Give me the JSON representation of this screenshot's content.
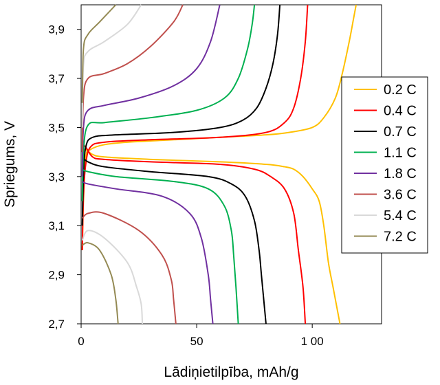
{
  "chart_data": {
    "type": "line",
    "xlabel": "Lādiņietilpība, mAh/g",
    "ylabel": "Spriegums, V",
    "xlim": [
      0,
      130
    ],
    "ylim": [
      2.7,
      4.0
    ],
    "x_ticks": [
      0,
      50,
      100
    ],
    "x_tick_labels": [
      "0",
      "50",
      "1 00"
    ],
    "y_ticks": [
      2.7,
      2.9,
      3.1,
      3.3,
      3.5,
      3.7,
      3.9
    ],
    "y_tick_labels": [
      "2,7",
      "2,9",
      "3,1",
      "3,3",
      "3,5",
      "3,7",
      "3,9"
    ],
    "grid": false,
    "legend_position": "right",
    "series": [
      {
        "name": "0.2 C",
        "color": "#FFC000",
        "charge": [
          [
            0.5,
            3.0
          ],
          [
            1,
            3.2
          ],
          [
            2,
            3.38
          ],
          [
            4,
            3.41
          ],
          [
            10,
            3.43
          ],
          [
            20,
            3.44
          ],
          [
            40,
            3.45
          ],
          [
            60,
            3.46
          ],
          [
            80,
            3.47
          ],
          [
            90,
            3.48
          ],
          [
            100,
            3.5
          ],
          [
            105,
            3.54
          ],
          [
            110,
            3.62
          ],
          [
            113,
            3.72
          ],
          [
            116,
            3.85
          ],
          [
            118,
            3.95
          ],
          [
            119,
            4.0
          ]
        ],
        "discharge": [
          [
            0.5,
            3.4
          ],
          [
            2,
            3.41
          ],
          [
            5,
            3.39
          ],
          [
            10,
            3.38
          ],
          [
            30,
            3.37
          ],
          [
            60,
            3.36
          ],
          [
            80,
            3.35
          ],
          [
            88,
            3.34
          ],
          [
            92,
            3.33
          ],
          [
            96,
            3.3
          ],
          [
            100,
            3.25
          ],
          [
            103,
            3.2
          ],
          [
            105,
            3.1
          ],
          [
            107,
            2.95
          ],
          [
            109,
            2.85
          ],
          [
            111,
            2.75
          ],
          [
            112,
            2.7
          ]
        ]
      },
      {
        "name": "0.4 C",
        "color": "#FF0000",
        "charge": [
          [
            0.5,
            3.0
          ],
          [
            1,
            3.22
          ],
          [
            2,
            3.35
          ],
          [
            4,
            3.42
          ],
          [
            10,
            3.44
          ],
          [
            30,
            3.45
          ],
          [
            60,
            3.46
          ],
          [
            80,
            3.48
          ],
          [
            88,
            3.52
          ],
          [
            92,
            3.58
          ],
          [
            95,
            3.7
          ],
          [
            97,
            3.85
          ],
          [
            98,
            4.0
          ]
        ],
        "discharge": [
          [
            0.5,
            3.43
          ],
          [
            2,
            3.42
          ],
          [
            5,
            3.38
          ],
          [
            10,
            3.37
          ],
          [
            30,
            3.36
          ],
          [
            60,
            3.35
          ],
          [
            75,
            3.33
          ],
          [
            82,
            3.3
          ],
          [
            88,
            3.25
          ],
          [
            92,
            3.15
          ],
          [
            94,
            3.0
          ],
          [
            96,
            2.85
          ],
          [
            97,
            2.7
          ]
        ]
      },
      {
        "name": "0.7 C",
        "color": "#000000",
        "charge": [
          [
            0.5,
            3.1
          ],
          [
            1,
            3.3
          ],
          [
            2,
            3.42
          ],
          [
            5,
            3.46
          ],
          [
            15,
            3.47
          ],
          [
            40,
            3.48
          ],
          [
            60,
            3.5
          ],
          [
            70,
            3.53
          ],
          [
            76,
            3.58
          ],
          [
            80,
            3.66
          ],
          [
            83,
            3.76
          ],
          [
            85,
            3.88
          ],
          [
            86,
            4.0
          ]
        ],
        "discharge": [
          [
            0.5,
            3.38
          ],
          [
            3,
            3.36
          ],
          [
            10,
            3.34
          ],
          [
            30,
            3.32
          ],
          [
            55,
            3.3
          ],
          [
            65,
            3.27
          ],
          [
            71,
            3.22
          ],
          [
            75,
            3.12
          ],
          [
            77,
            3.0
          ],
          [
            78,
            2.9
          ],
          [
            79,
            2.8
          ],
          [
            80,
            2.7
          ]
        ]
      },
      {
        "name": "1.1 C",
        "color": "#00B050",
        "charge": [
          [
            0.5,
            3.2
          ],
          [
            1,
            3.4
          ],
          [
            3,
            3.51
          ],
          [
            10,
            3.52
          ],
          [
            30,
            3.54
          ],
          [
            50,
            3.57
          ],
          [
            62,
            3.62
          ],
          [
            68,
            3.7
          ],
          [
            72,
            3.82
          ],
          [
            74,
            3.92
          ],
          [
            75,
            4.0
          ]
        ],
        "discharge": [
          [
            0.5,
            3.33
          ],
          [
            3,
            3.32
          ],
          [
            15,
            3.3
          ],
          [
            40,
            3.28
          ],
          [
            55,
            3.25
          ],
          [
            62,
            3.18
          ],
          [
            65,
            3.08
          ],
          [
            66,
            2.98
          ],
          [
            67,
            2.85
          ],
          [
            68,
            2.7
          ]
        ]
      },
      {
        "name": "1.8 C",
        "color": "#7030A0",
        "charge": [
          [
            0.5,
            3.3
          ],
          [
            1,
            3.5
          ],
          [
            3,
            3.57
          ],
          [
            10,
            3.59
          ],
          [
            25,
            3.62
          ],
          [
            40,
            3.67
          ],
          [
            50,
            3.74
          ],
          [
            56,
            3.85
          ],
          [
            60,
            4.0
          ]
        ],
        "discharge": [
          [
            0.5,
            3.28
          ],
          [
            3,
            3.27
          ],
          [
            15,
            3.25
          ],
          [
            35,
            3.22
          ],
          [
            47,
            3.15
          ],
          [
            52,
            3.05
          ],
          [
            55,
            2.9
          ],
          [
            56,
            2.8
          ],
          [
            57,
            2.7
          ]
        ]
      },
      {
        "name": "3.6 C",
        "color": "#C0504D",
        "charge": [
          [
            0.5,
            3.4
          ],
          [
            1,
            3.62
          ],
          [
            3,
            3.7
          ],
          [
            10,
            3.72
          ],
          [
            20,
            3.76
          ],
          [
            30,
            3.83
          ],
          [
            40,
            3.93
          ],
          [
            44,
            4.0
          ]
        ],
        "discharge": [
          [
            0.5,
            3.13
          ],
          [
            3,
            3.15
          ],
          [
            10,
            3.15
          ],
          [
            25,
            3.08
          ],
          [
            35,
            2.98
          ],
          [
            39,
            2.88
          ],
          [
            40,
            2.8
          ],
          [
            41,
            2.7
          ]
        ]
      },
      {
        "name": "5.4 C",
        "color": "#D9D9D9",
        "charge": [
          [
            0.5,
            3.5
          ],
          [
            1,
            3.75
          ],
          [
            3,
            3.81
          ],
          [
            10,
            3.85
          ],
          [
            20,
            3.92
          ],
          [
            26,
            4.0
          ]
        ],
        "discharge": [
          [
            0.5,
            3.04
          ],
          [
            3,
            3.08
          ],
          [
            10,
            3.05
          ],
          [
            20,
            2.95
          ],
          [
            24,
            2.85
          ],
          [
            26,
            2.78
          ],
          [
            26.5,
            2.7
          ]
        ]
      },
      {
        "name": "7.2 C",
        "color": "#948A54",
        "charge": [
          [
            0.5,
            3.6
          ],
          [
            1,
            3.82
          ],
          [
            3,
            3.88
          ],
          [
            8,
            3.93
          ],
          [
            15,
            4.0
          ]
        ],
        "discharge": [
          [
            0.5,
            3.02
          ],
          [
            3,
            3.03
          ],
          [
            8,
            3.0
          ],
          [
            13,
            2.9
          ],
          [
            15,
            2.8
          ],
          [
            16,
            2.7
          ]
        ]
      }
    ]
  }
}
